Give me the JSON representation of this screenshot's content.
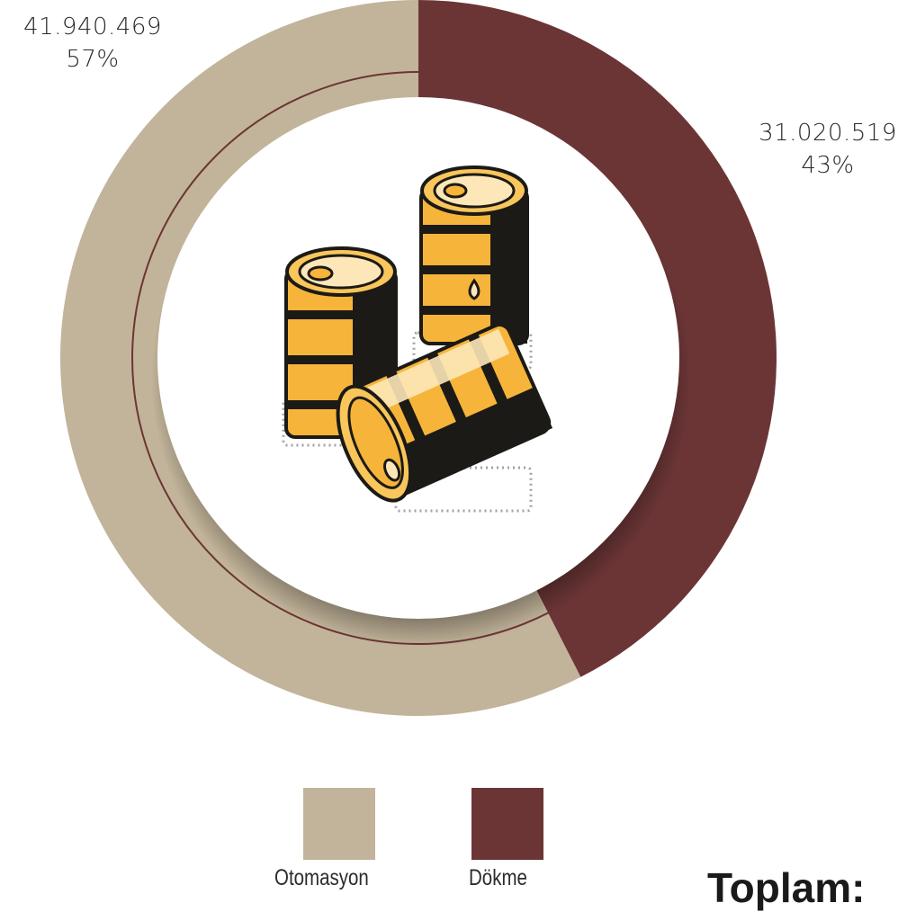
{
  "chart_data": {
    "type": "pie",
    "categories": [
      "Otomasyon",
      "Dökme"
    ],
    "values": [
      41940469,
      31020519
    ],
    "value_labels": [
      "41.940.469",
      "31.020.519"
    ],
    "percent_labels": [
      "57%",
      "43%"
    ],
    "colors": [
      "#c2b49a",
      "#6b3536"
    ],
    "legend": {
      "placement": "bottom",
      "items": [
        "Otomasyon",
        "Dökme"
      ]
    },
    "title": ""
  },
  "total": {
    "label": "Toplam:"
  },
  "icon": {
    "name": "oil-barrels-icon"
  }
}
